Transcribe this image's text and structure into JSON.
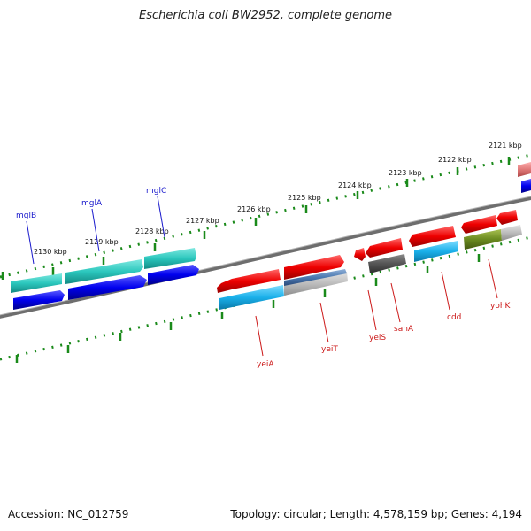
{
  "title": "Escherichia coli BW2952, complete genome",
  "footer": {
    "accession": "Accession: NC_012759",
    "topology": "Topology: circular; Length: 4,578,159 bp; Genes: 4,194"
  },
  "colors": {
    "backbone": "#7a7a7a",
    "tick": "#1a8a1a",
    "label_blue": "#1a1acc",
    "label_red": "#cc1a1a"
  },
  "ticks": [
    "2121 kbp",
    "2122 kbp",
    "2123 kbp",
    "2124 kbp",
    "2125 kbp",
    "2126 kbp",
    "2127 kbp",
    "2128 kbp",
    "2129 kbp",
    "2130 kbp"
  ],
  "genes": {
    "mglB": "mglB",
    "mglA": "mglA",
    "mglC": "mglC",
    "yeiA": "yeiA",
    "yeiT": "yeiT",
    "yeiS": "yeiS",
    "sanA": "sanA",
    "cdd": "cdd",
    "yohK": "yohK"
  }
}
